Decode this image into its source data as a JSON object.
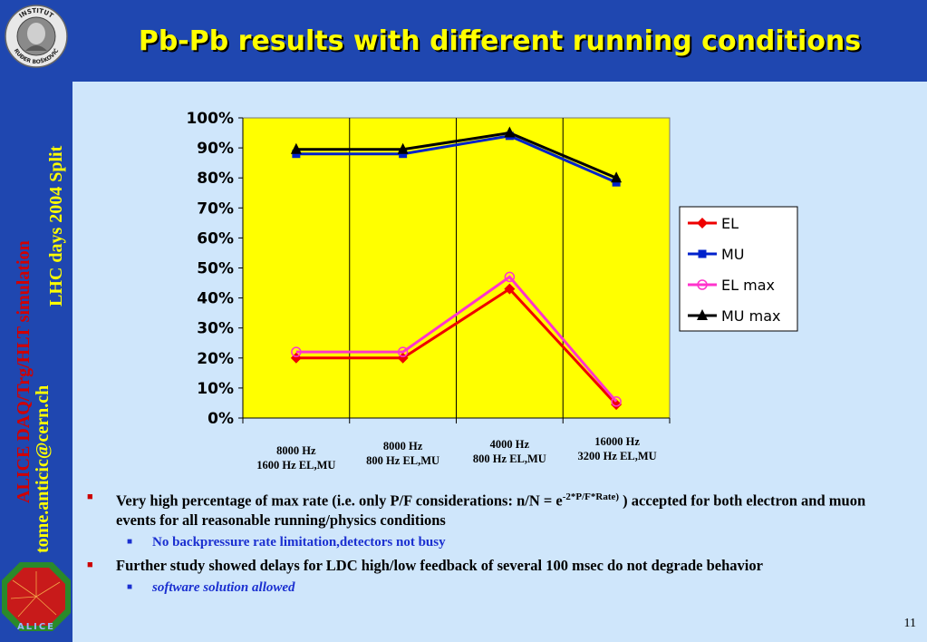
{
  "title": "Pb-Pb results with different running conditions",
  "sidebar": {
    "line1": "ALICE DAQ/Trg/HLT simulation",
    "line2": "tome.anticic@cern.ch",
    "line3": "LHC days 2004 Split",
    "logo_text_top": "INSTITUT",
    "logo_text_bottom": "RUĐER BOŠKOVIĆ",
    "alice_text": "ALICE"
  },
  "colors": {
    "plot_bg": "#ffff00",
    "el": "#ee0000",
    "mu": "#0022cc",
    "el_max": "#ff33cc",
    "mu_max": "#000000"
  },
  "chart_data": {
    "type": "line",
    "categories": [
      [
        "8000 Hz",
        "1600 Hz EL,MU"
      ],
      [
        "8000 Hz",
        "800 Hz EL,MU"
      ],
      [
        "4000 Hz",
        "800 Hz EL,MU"
      ],
      [
        "16000 Hz",
        "3200 Hz EL,MU"
      ]
    ],
    "ylim": [
      0,
      100
    ],
    "yticks": [
      "0%",
      "10%",
      "20%",
      "30%",
      "40%",
      "50%",
      "60%",
      "70%",
      "80%",
      "90%",
      "100%"
    ],
    "grid": "vertical",
    "legend_position": "right",
    "series": [
      {
        "name": "EL",
        "values": [
          20,
          20,
          43,
          4.5
        ],
        "marker": "diamond",
        "color": "#ee0000"
      },
      {
        "name": "MU",
        "values": [
          88,
          88,
          94,
          78.5
        ],
        "marker": "square",
        "color": "#0022cc"
      },
      {
        "name": "EL max",
        "values": [
          22,
          22,
          47,
          5.5
        ],
        "marker": "circle",
        "color": "#ff33cc"
      },
      {
        "name": "MU max",
        "values": [
          89.5,
          89.5,
          95,
          80
        ],
        "marker": "triangle",
        "color": "#000000"
      }
    ]
  },
  "bullets": [
    {
      "text_pre": "Very high percentage of max rate (i.e. only P/F considerations: n/N = e",
      "sup": "-2*P/F*Rate)",
      "text_post": " ) accepted for both electron and muon events for all reasonable running/physics conditions",
      "sub": "No backpressure rate limitation,detectors not busy"
    },
    {
      "text": "Further study showed delays for LDC high/low feedback of several 100 msec do not degrade behavior",
      "sub": "software solution allowed"
    }
  ],
  "page_number": "11"
}
